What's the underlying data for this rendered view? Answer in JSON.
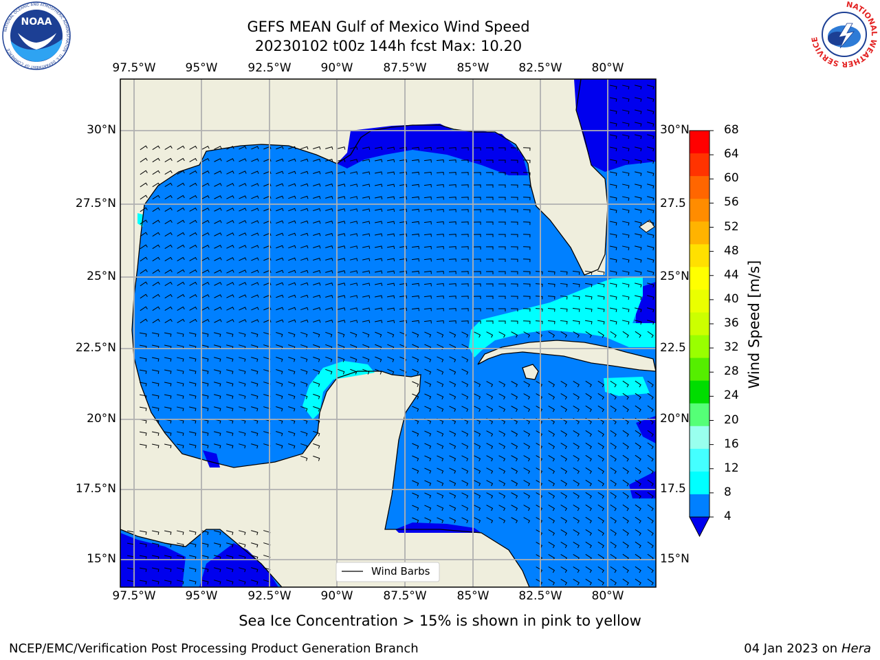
{
  "title": {
    "line1": "GEFS MEAN Gulf of Mexico Wind Speed",
    "line2": "20230102 t00z 144h fcst   Max: 10.20"
  },
  "map": {
    "lon_ticks": [
      "97.5°W",
      "95°W",
      "92.5°W",
      "90°W",
      "87.5°W",
      "85°W",
      "82.5°W",
      "80°W"
    ],
    "lat_ticks_left": [
      "30°N",
      "27.5°N",
      "25°N",
      "22.5°N",
      "20°N",
      "17.5°N",
      "15°N"
    ],
    "lat_ticks_right": [
      "30°N",
      "27.5",
      "25°N",
      "22.5",
      "20°N",
      "17.5",
      "15°N"
    ],
    "legend_label": "Wind Barbs",
    "colors": {
      "land": "#efeedd",
      "ocean_4_8": "#0080ff",
      "ocean_below_4": "#0000ee",
      "ocean_8_12": "#00ffff",
      "gridline": "#b0b0b0"
    }
  },
  "colorbar": {
    "label": "Wind Speed [m/s]",
    "ticks": [
      "68",
      "64",
      "60",
      "56",
      "52",
      "48",
      "44",
      "40",
      "36",
      "32",
      "28",
      "24",
      "20",
      "16",
      "12",
      "8",
      "4"
    ],
    "colors": [
      "#ff0000",
      "#ff3300",
      "#ff6600",
      "#ff8c00",
      "#ffb300",
      "#ffe000",
      "#ffff00",
      "#eaff00",
      "#ccff00",
      "#99ff00",
      "#55ee00",
      "#00dd00",
      "#55ff77",
      "#99ffee",
      "#44ffff",
      "#00ffff",
      "#0080ff"
    ],
    "extend_color": "#0000ee"
  },
  "notes": {
    "sea_ice": "Sea Ice Concentration > 15% is shown in pink to yellow"
  },
  "footer": {
    "left": "NCEP/EMC/Verification Post Processing Product Generation Branch",
    "date": "04 Jan 2023 on ",
    "machine": "Hera"
  },
  "logos": {
    "noaa": {
      "text": "NOAA",
      "ring_text": "NATIONAL OCEANIC AND ATMOSPHERIC ADMINISTRATION · U.S. DEPARTMENT OF COMMERCE"
    },
    "nws": {
      "ring_text": "NATIONAL WEATHER SERVICE"
    }
  }
}
